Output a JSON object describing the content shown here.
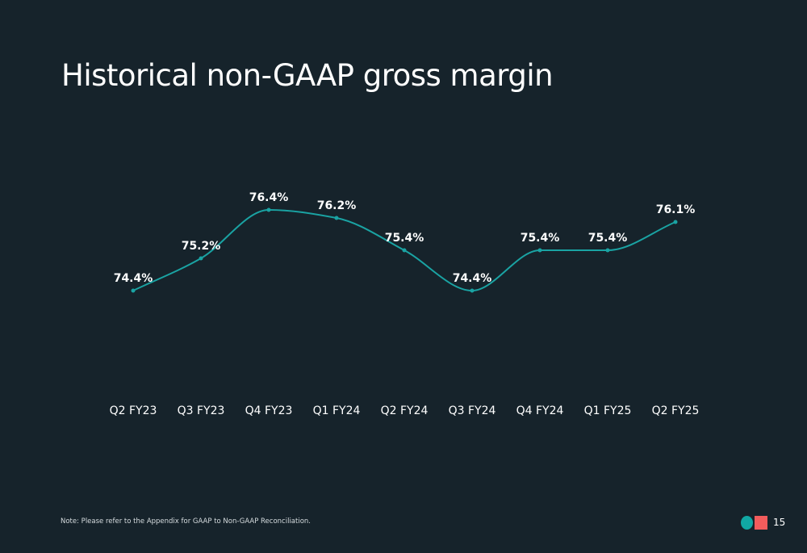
{
  "slide": {
    "title": "Historical non-GAAP gross margin",
    "footnote": "Note: Please refer to the Appendix for GAAP to Non-GAAP Reconciliation.",
    "page_number": "15",
    "logo_icons": [
      "teal-circle-icon",
      "coral-square-icon"
    ]
  },
  "colors": {
    "background": "#16232b",
    "line": "#1aa3a3",
    "logo_teal": "#11a8a4",
    "logo_coral": "#f25c5c",
    "text": "#ffffff"
  },
  "chart_data": {
    "type": "line",
    "title": "Historical non-GAAP gross margin",
    "categories": [
      "Q2 FY23",
      "Q3 FY23",
      "Q4 FY23",
      "Q1 FY24",
      "Q2 FY24",
      "Q3 FY24",
      "Q4 FY24",
      "Q1 FY25",
      "Q2 FY25"
    ],
    "series": [
      {
        "values": [
          74.4,
          75.2,
          76.4,
          76.2,
          75.4,
          74.4,
          75.4,
          75.4,
          76.1
        ],
        "labels": [
          "74.4%",
          "75.2%",
          "76.4%",
          "76.2%",
          "75.4%",
          "74.4%",
          "75.4%",
          "75.4%",
          "76.1%"
        ]
      }
    ],
    "ylim": [
      72,
      79
    ],
    "unit": "%",
    "grid": false,
    "legend": "none",
    "y_axis_visible": false,
    "smooth": true
  }
}
